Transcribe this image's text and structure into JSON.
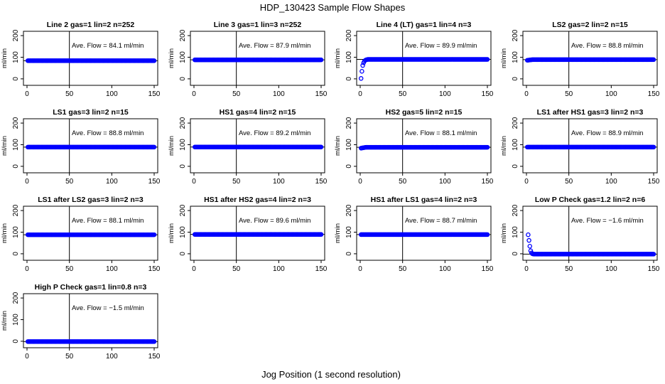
{
  "figure": {
    "title": "HDP_130423  Sample Flow Shapes",
    "xlabel": "Jog Position (1 second resolution)"
  },
  "colors": {
    "points": "#0000ff",
    "axes": "#000000",
    "background": "#ffffff"
  },
  "chart_data": [
    {
      "type": "scatter",
      "title": "Line 2 gas=1 lin=2 n=252",
      "ylabel": "ml/min",
      "xlim": [
        0,
        150
      ],
      "ylim": [
        -30,
        220
      ],
      "xticks": [
        0,
        50,
        100,
        150
      ],
      "yticks": [
        0,
        100,
        200
      ],
      "vline": 50,
      "hline": 84.1,
      "annotation": "Ave. Flow =  84.1  ml/min",
      "shape": "flat",
      "points": [
        [
          1,
          84.1
        ],
        [
          150,
          84.1
        ]
      ],
      "series_value": 84.1
    },
    {
      "type": "scatter",
      "title": "Line 3 gas=1 lin=3 n=252",
      "ylabel": "ml/min",
      "xlim": [
        0,
        150
      ],
      "ylim": [
        -30,
        220
      ],
      "xticks": [
        0,
        50,
        100,
        150
      ],
      "yticks": [
        0,
        100,
        200
      ],
      "vline": 50,
      "hline": 87.9,
      "annotation": "Ave. Flow =  87.9  ml/min",
      "shape": "flat",
      "points": [
        [
          1,
          87.9
        ],
        [
          150,
          87.9
        ]
      ],
      "series_value": 87.9
    },
    {
      "type": "scatter",
      "title": "Line 4 (LT) gas=1 lin=4 n=3",
      "ylabel": "ml/min",
      "xlim": [
        0,
        150
      ],
      "ylim": [
        -30,
        220
      ],
      "xticks": [
        0,
        50,
        100,
        150
      ],
      "yticks": [
        0,
        100,
        200
      ],
      "vline": 50,
      "hline": 89.9,
      "annotation": "Ave. Flow =  89.9  ml/min",
      "shape": "rise",
      "points": [
        [
          1,
          2
        ],
        [
          2,
          35
        ],
        [
          3,
          62
        ],
        [
          4,
          74
        ],
        [
          5,
          82
        ],
        [
          6,
          86
        ],
        [
          7,
          88
        ],
        [
          8,
          89
        ]
      ],
      "series_value": 89.9
    },
    {
      "type": "scatter",
      "title": "LS2 gas=2 lin=2 n=15",
      "ylabel": "ml/min",
      "xlim": [
        0,
        150
      ],
      "ylim": [
        -30,
        220
      ],
      "xticks": [
        0,
        50,
        100,
        150
      ],
      "yticks": [
        0,
        100,
        200
      ],
      "vline": 50,
      "hline": 88.8,
      "annotation": "Ave. Flow =  88.8  ml/min",
      "shape": "flat",
      "points": [
        [
          1,
          86
        ],
        [
          150,
          88.8
        ]
      ],
      "series_value": 88.8
    },
    {
      "type": "scatter",
      "title": "LS1 gas=3 lin=2 n=15",
      "ylabel": "ml/min",
      "xlim": [
        0,
        150
      ],
      "ylim": [
        -30,
        220
      ],
      "xticks": [
        0,
        50,
        100,
        150
      ],
      "yticks": [
        0,
        100,
        200
      ],
      "vline": 50,
      "hline": 88.8,
      "annotation": "Ave. Flow =  88.8  ml/min",
      "shape": "flat",
      "points": [
        [
          1,
          88.8
        ],
        [
          150,
          88.8
        ]
      ],
      "series_value": 88.8
    },
    {
      "type": "scatter",
      "title": "HS1 gas=4 lin=2 n=15",
      "ylabel": "ml/min",
      "xlim": [
        0,
        150
      ],
      "ylim": [
        -30,
        220
      ],
      "xticks": [
        0,
        50,
        100,
        150
      ],
      "yticks": [
        0,
        100,
        200
      ],
      "vline": 50,
      "hline": 89.2,
      "annotation": "Ave. Flow =  89.2  ml/min",
      "shape": "flat",
      "points": [
        [
          1,
          89.2
        ],
        [
          150,
          89.2
        ]
      ],
      "series_value": 89.2
    },
    {
      "type": "scatter",
      "title": "HS2 gas=5 lin=2 n=15",
      "ylabel": "ml/min",
      "xlim": [
        0,
        150
      ],
      "ylim": [
        -30,
        220
      ],
      "xticks": [
        0,
        50,
        100,
        150
      ],
      "yticks": [
        0,
        100,
        200
      ],
      "vline": 50,
      "hline": 88.1,
      "annotation": "Ave. Flow =  88.1  ml/min",
      "shape": "flat",
      "points": [
        [
          1,
          84
        ],
        [
          150,
          88.1
        ]
      ],
      "series_value": 88.1
    },
    {
      "type": "scatter",
      "title": "LS1 after HS1 gas=3 lin=2 n=3",
      "ylabel": "ml/min",
      "xlim": [
        0,
        150
      ],
      "ylim": [
        -30,
        220
      ],
      "xticks": [
        0,
        50,
        100,
        150
      ],
      "yticks": [
        0,
        100,
        200
      ],
      "vline": 50,
      "hline": 88.9,
      "annotation": "Ave. Flow =  88.9  ml/min",
      "shape": "flat",
      "points": [
        [
          1,
          88.9
        ],
        [
          150,
          88.9
        ]
      ],
      "series_value": 88.9
    },
    {
      "type": "scatter",
      "title": "LS1 after LS2 gas=3 lin=2 n=3",
      "ylabel": "ml/min",
      "xlim": [
        0,
        150
      ],
      "ylim": [
        -30,
        220
      ],
      "xticks": [
        0,
        50,
        100,
        150
      ],
      "yticks": [
        0,
        100,
        200
      ],
      "vline": 50,
      "hline": 88.1,
      "annotation": "Ave. Flow =  88.1  ml/min",
      "shape": "flat",
      "points": [
        [
          1,
          88.1
        ],
        [
          150,
          88.1
        ]
      ],
      "series_value": 88.1
    },
    {
      "type": "scatter",
      "title": "HS1 after HS2 gas=4 lin=2 n=3",
      "ylabel": "ml/min",
      "xlim": [
        0,
        150
      ],
      "ylim": [
        -30,
        220
      ],
      "xticks": [
        0,
        50,
        100,
        150
      ],
      "yticks": [
        0,
        100,
        200
      ],
      "vline": 50,
      "hline": 89.6,
      "annotation": "Ave. Flow =  89.6  ml/min",
      "shape": "flat",
      "points": [
        [
          1,
          89.6
        ],
        [
          150,
          89.6
        ]
      ],
      "series_value": 89.6
    },
    {
      "type": "scatter",
      "title": "HS1 after LS1 gas=4 lin=2 n=3",
      "ylabel": "ml/min",
      "xlim": [
        0,
        150
      ],
      "ylim": [
        -30,
        220
      ],
      "xticks": [
        0,
        50,
        100,
        150
      ],
      "yticks": [
        0,
        100,
        200
      ],
      "vline": 50,
      "hline": 88.7,
      "annotation": "Ave. Flow =  88.7  ml/min",
      "shape": "flat",
      "points": [
        [
          1,
          88.7
        ],
        [
          150,
          88.7
        ]
      ],
      "series_value": 88.7
    },
    {
      "type": "scatter",
      "title": "Low P Check gas=1.2 lin=2 n=6",
      "ylabel": "ml/min",
      "xlim": [
        0,
        150
      ],
      "ylim": [
        -30,
        220
      ],
      "xticks": [
        0,
        50,
        100,
        150
      ],
      "yticks": [
        0,
        100,
        200
      ],
      "vline": 50,
      "hline": -1.6,
      "annotation": "Ave. Flow =  −1.6  ml/min",
      "shape": "decay",
      "points": [
        [
          2,
          88
        ],
        [
          3,
          62
        ],
        [
          4,
          35
        ],
        [
          5,
          14
        ],
        [
          6,
          4
        ],
        [
          7,
          0
        ],
        [
          8,
          -1
        ]
      ],
      "series_value": -1.6
    },
    {
      "type": "scatter",
      "title": "High P Check gas=1 lin=0.8 n=3",
      "ylabel": "ml/min",
      "xlim": [
        0,
        150
      ],
      "ylim": [
        -30,
        220
      ],
      "xticks": [
        0,
        50,
        100,
        150
      ],
      "yticks": [
        0,
        100,
        200
      ],
      "vline": 50,
      "hline": -1.5,
      "annotation": "Ave. Flow =  −1.5  ml/min",
      "shape": "flat",
      "points": [
        [
          1,
          -1.5
        ],
        [
          150,
          -1.5
        ]
      ],
      "series_value": -1.5
    }
  ]
}
